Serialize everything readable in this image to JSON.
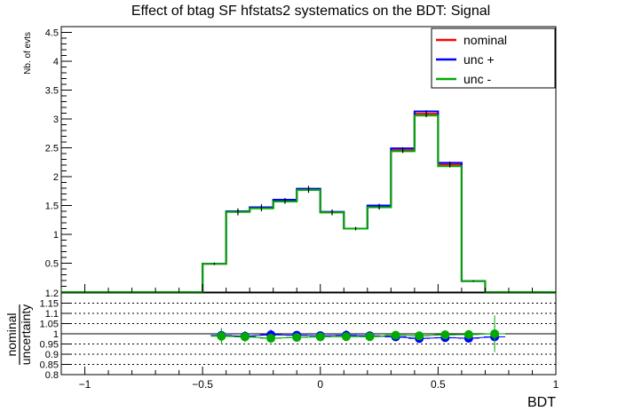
{
  "chart_data": {
    "type": "step-histogram-with-ratio",
    "title": "Effect of btag SF hfstats2 systematics on the BDT: Signal",
    "ylabel": "Nb. of evts",
    "xlabel": "BDT",
    "xlim": [
      -1.1,
      1.0
    ],
    "ylim": [
      0,
      4.6
    ],
    "x_ticks": [
      -1,
      -0.5,
      0,
      0.5,
      1
    ],
    "x_tick_labels": [
      "−1",
      "−0.5",
      "0",
      "0.5",
      "1"
    ],
    "y_ticks": [
      0.5,
      1,
      1.5,
      2,
      2.5,
      3,
      3.5,
      4,
      4.5
    ],
    "y_tick_labels": [
      "0.5",
      "1",
      "1.5",
      "2",
      "2.5",
      "3",
      "3.5",
      "4",
      "4.5"
    ],
    "bin_edges": [
      -1.1,
      -1.0,
      -0.9,
      -0.8,
      -0.7,
      -0.6,
      -0.5,
      -0.4,
      -0.3,
      -0.2,
      -0.1,
      0.0,
      0.1,
      0.2,
      0.3,
      0.4,
      0.5,
      0.6,
      0.7,
      0.8,
      0.9,
      1.0
    ],
    "legend": {
      "position": "top-right",
      "entries": [
        "nominal",
        "unc +",
        "unc -"
      ]
    },
    "series": [
      {
        "name": "nominal",
        "color": "#ff0000",
        "values": [
          0,
          0,
          0,
          0,
          0,
          0,
          0.49,
          1.39,
          1.46,
          1.58,
          1.78,
          1.38,
          1.1,
          1.48,
          2.46,
          3.09,
          2.21,
          0.19,
          0,
          0,
          0
        ],
        "errors": [
          0,
          0,
          0,
          0,
          0,
          0,
          0.02,
          0.06,
          0.06,
          0.05,
          0.06,
          0.05,
          0.03,
          0.05,
          0.05,
          0.06,
          0.05,
          0.01,
          0,
          0,
          0
        ]
      },
      {
        "name": "unc +",
        "color": "#0000ff",
        "values": [
          0,
          0,
          0,
          0,
          0,
          0,
          0.49,
          1.4,
          1.47,
          1.6,
          1.79,
          1.39,
          1.1,
          1.5,
          2.49,
          3.13,
          2.24,
          0.19,
          0,
          0,
          0
        ],
        "errors": [
          0,
          0,
          0,
          0,
          0,
          0,
          0.02,
          0.06,
          0.06,
          0.05,
          0.06,
          0.05,
          0.03,
          0.05,
          0.05,
          0.06,
          0.05,
          0.01,
          0,
          0,
          0
        ]
      },
      {
        "name": "unc -",
        "color": "#00aa00",
        "values": [
          0,
          0,
          0,
          0,
          0,
          0,
          0.49,
          1.39,
          1.45,
          1.57,
          1.77,
          1.38,
          1.1,
          1.47,
          2.44,
          3.06,
          2.18,
          0.19,
          0,
          0,
          0
        ],
        "errors": [
          0,
          0,
          0,
          0,
          0,
          0,
          0.02,
          0.06,
          0.06,
          0.05,
          0.06,
          0.05,
          0.03,
          0.05,
          0.05,
          0.06,
          0.05,
          0.01,
          0,
          0,
          0
        ]
      }
    ],
    "ratio": {
      "ylabel_numerator": "nominal",
      "ylabel_denominator": "uncertainty",
      "ylim": [
        0.8,
        1.2
      ],
      "y_ticks": [
        0.8,
        0.85,
        0.9,
        0.95,
        1,
        1.05,
        1.1,
        1.15,
        1.2
      ],
      "y_tick_labels": [
        "0.8",
        "0.85",
        "0.9",
        "0.95",
        "1",
        "1.05",
        "1.1",
        "1.15",
        "1.2"
      ],
      "grid_y": [
        0.85,
        0.9,
        0.95,
        1.05,
        1.1,
        1.15
      ],
      "reference_line": 1.0,
      "x_range": [
        -0.45,
        0.8
      ],
      "series": [
        {
          "name": "unc +",
          "color": "#0000ff",
          "x": [
            -0.42,
            -0.32,
            -0.21,
            -0.1,
            0.0,
            0.11,
            0.21,
            0.32,
            0.42,
            0.53,
            0.63,
            0.74
          ],
          "values": [
            0.992,
            0.988,
            0.995,
            0.993,
            0.991,
            0.993,
            0.99,
            0.985,
            0.977,
            0.981,
            0.978,
            0.985
          ],
          "errors": [
            0.03,
            0.025,
            0.025,
            0.02,
            0.02,
            0.025,
            0.02,
            0.02,
            0.015,
            0.015,
            0.02,
            0.06
          ]
        },
        {
          "name": "unc -",
          "color": "#00aa00",
          "x": [
            -0.42,
            -0.32,
            -0.21,
            -0.1,
            0.0,
            0.11,
            0.21,
            0.32,
            0.42,
            0.53,
            0.63,
            0.74
          ],
          "values": [
            0.988,
            0.985,
            0.978,
            0.982,
            0.985,
            0.986,
            0.986,
            0.993,
            0.99,
            0.995,
            0.996,
            1.0
          ],
          "errors": [
            0.04,
            0.025,
            0.02,
            0.02,
            0.02,
            0.02,
            0.02,
            0.02,
            0.015,
            0.015,
            0.015,
            0.09
          ]
        }
      ]
    }
  }
}
